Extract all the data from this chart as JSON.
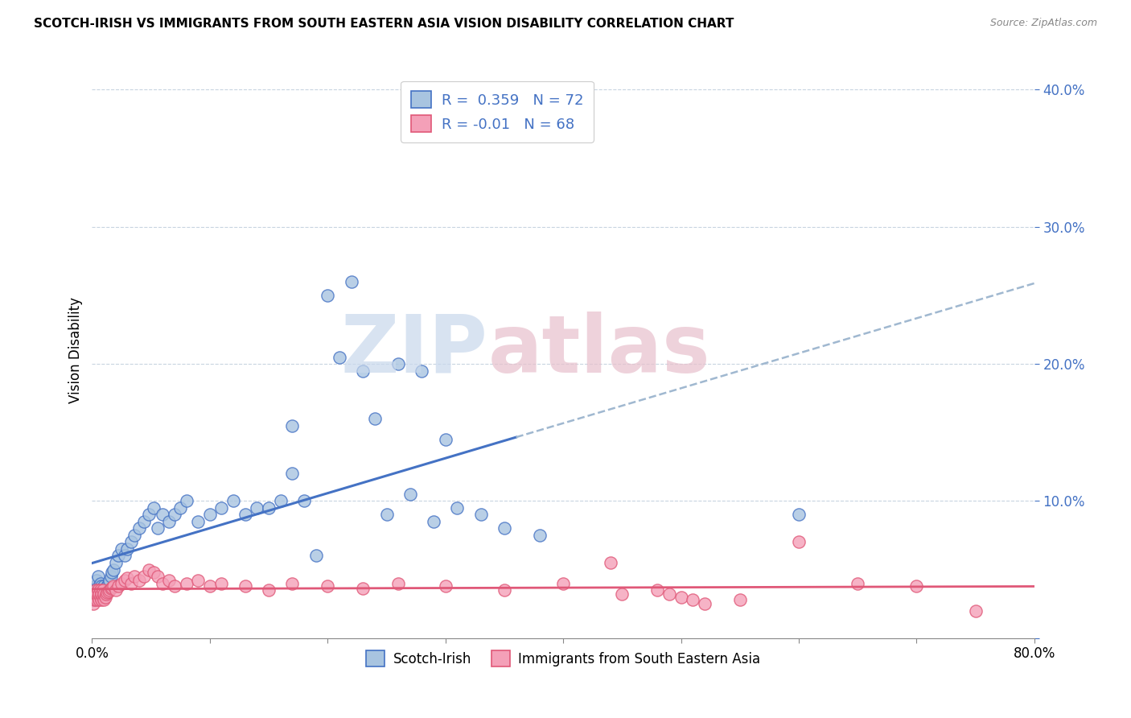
{
  "title": "SCOTCH-IRISH VS IMMIGRANTS FROM SOUTH EASTERN ASIA VISION DISABILITY CORRELATION CHART",
  "source": "Source: ZipAtlas.com",
  "ylabel": "Vision Disability",
  "xlim": [
    0.0,
    0.8
  ],
  "ylim": [
    0.0,
    0.42
  ],
  "ytick_vals": [
    0.0,
    0.1,
    0.2,
    0.3,
    0.4
  ],
  "ytick_labels": [
    "",
    "10.0%",
    "20.0%",
    "30.0%",
    "40.0%"
  ],
  "xtick_vals": [
    0.0,
    0.1,
    0.2,
    0.3,
    0.4,
    0.5,
    0.6,
    0.7,
    0.8
  ],
  "xtick_labels": [
    "0.0%",
    "",
    "",
    "",
    "",
    "",
    "",
    "",
    "80.0%"
  ],
  "scotch_irish_R": 0.359,
  "scotch_irish_N": 72,
  "sea_R": -0.01,
  "sea_N": 68,
  "scotch_irish_color": "#a8c4e0",
  "scotch_irish_edge": "#4472c4",
  "sea_color": "#f4a0b8",
  "sea_edge": "#e05878",
  "trend_scotch_color": "#4472c4",
  "trend_sea_color": "#e05878",
  "dashed_color": "#a0b8d0",
  "watermark_zip_color": "#c8d8ec",
  "watermark_atlas_color": "#e8c0cc",
  "scotch_irish_x": [
    0.001,
    0.002,
    0.002,
    0.003,
    0.003,
    0.004,
    0.004,
    0.005,
    0.005,
    0.006,
    0.006,
    0.007,
    0.007,
    0.008,
    0.008,
    0.009,
    0.009,
    0.01,
    0.01,
    0.011,
    0.012,
    0.013,
    0.014,
    0.015,
    0.016,
    0.017,
    0.018,
    0.02,
    0.022,
    0.025,
    0.028,
    0.03,
    0.033,
    0.036,
    0.04,
    0.044,
    0.048,
    0.052,
    0.056,
    0.06,
    0.065,
    0.07,
    0.075,
    0.08,
    0.09,
    0.1,
    0.11,
    0.12,
    0.13,
    0.14,
    0.15,
    0.16,
    0.17,
    0.18,
    0.2,
    0.22,
    0.24,
    0.26,
    0.28,
    0.3,
    0.17,
    0.19,
    0.21,
    0.23,
    0.25,
    0.27,
    0.29,
    0.31,
    0.33,
    0.35,
    0.38,
    0.6
  ],
  "scotch_irish_y": [
    0.03,
    0.028,
    0.035,
    0.032,
    0.038,
    0.03,
    0.042,
    0.035,
    0.045,
    0.032,
    0.038,
    0.03,
    0.04,
    0.032,
    0.038,
    0.03,
    0.035,
    0.03,
    0.038,
    0.032,
    0.035,
    0.038,
    0.04,
    0.042,
    0.045,
    0.048,
    0.05,
    0.055,
    0.06,
    0.065,
    0.06,
    0.065,
    0.07,
    0.075,
    0.08,
    0.085,
    0.09,
    0.095,
    0.08,
    0.09,
    0.085,
    0.09,
    0.095,
    0.1,
    0.085,
    0.09,
    0.095,
    0.1,
    0.09,
    0.095,
    0.095,
    0.1,
    0.12,
    0.1,
    0.25,
    0.26,
    0.16,
    0.2,
    0.195,
    0.145,
    0.155,
    0.06,
    0.205,
    0.195,
    0.09,
    0.105,
    0.085,
    0.095,
    0.09,
    0.08,
    0.075,
    0.09
  ],
  "sea_x": [
    0.001,
    0.001,
    0.002,
    0.002,
    0.003,
    0.003,
    0.004,
    0.004,
    0.005,
    0.005,
    0.006,
    0.006,
    0.007,
    0.007,
    0.008,
    0.008,
    0.009,
    0.009,
    0.01,
    0.01,
    0.011,
    0.012,
    0.013,
    0.014,
    0.015,
    0.016,
    0.017,
    0.018,
    0.02,
    0.022,
    0.025,
    0.028,
    0.03,
    0.033,
    0.036,
    0.04,
    0.044,
    0.048,
    0.052,
    0.056,
    0.06,
    0.065,
    0.07,
    0.08,
    0.09,
    0.1,
    0.11,
    0.13,
    0.15,
    0.17,
    0.2,
    0.23,
    0.26,
    0.3,
    0.35,
    0.4,
    0.45,
    0.5,
    0.55,
    0.6,
    0.65,
    0.7,
    0.44,
    0.48,
    0.49,
    0.51,
    0.52,
    0.75
  ],
  "sea_y": [
    0.025,
    0.03,
    0.028,
    0.032,
    0.03,
    0.035,
    0.028,
    0.032,
    0.03,
    0.035,
    0.028,
    0.032,
    0.03,
    0.035,
    0.028,
    0.032,
    0.03,
    0.035,
    0.028,
    0.032,
    0.03,
    0.032,
    0.033,
    0.034,
    0.035,
    0.036,
    0.037,
    0.038,
    0.035,
    0.038,
    0.04,
    0.042,
    0.044,
    0.04,
    0.045,
    0.042,
    0.045,
    0.05,
    0.048,
    0.045,
    0.04,
    0.042,
    0.038,
    0.04,
    0.042,
    0.038,
    0.04,
    0.038,
    0.035,
    0.04,
    0.038,
    0.036,
    0.04,
    0.038,
    0.035,
    0.04,
    0.032,
    0.03,
    0.028,
    0.07,
    0.04,
    0.038,
    0.055,
    0.035,
    0.032,
    0.028,
    0.025,
    0.02
  ]
}
